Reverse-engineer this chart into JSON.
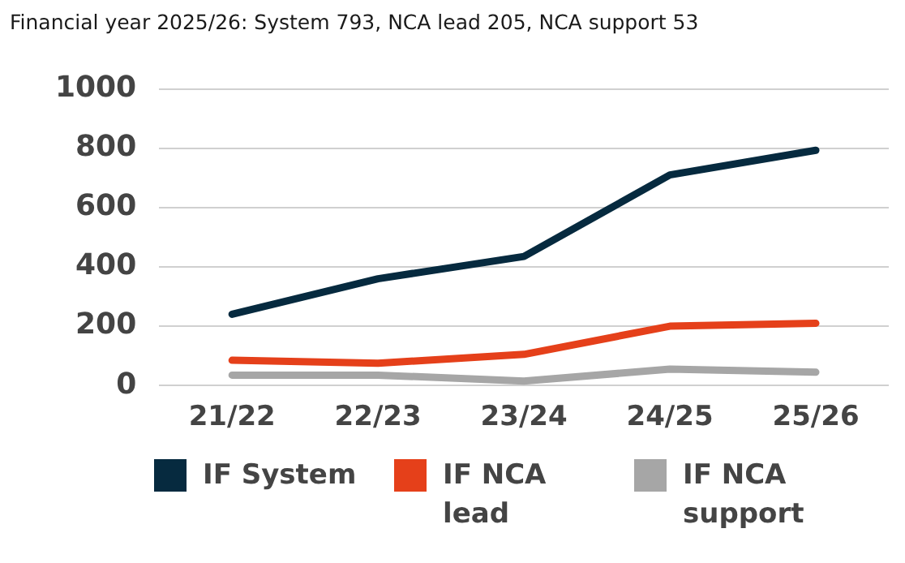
{
  "chart_data": {
    "type": "line",
    "title": "Financial year 2025/26: System 793, NCA lead 205, NCA support 53",
    "categories": [
      "21/22",
      "22/23",
      "23/24",
      "24/25",
      "25/26"
    ],
    "series": [
      {
        "name": "IF System",
        "color": "#062a3f",
        "values": [
          240,
          360,
          435,
          710,
          793
        ]
      },
      {
        "name": "IF NCA lead",
        "color": "#e5401a",
        "values": [
          85,
          75,
          105,
          200,
          210
        ]
      },
      {
        "name": "IF NCA support",
        "color": "#a6a6a6",
        "values": [
          35,
          35,
          15,
          55,
          45
        ]
      }
    ],
    "ylim": [
      0,
      1000
    ],
    "yticks": [
      0,
      200,
      400,
      600,
      800,
      1000
    ],
    "grid": "y",
    "legend": "bottom",
    "marker": "none",
    "line_style": "solid"
  }
}
